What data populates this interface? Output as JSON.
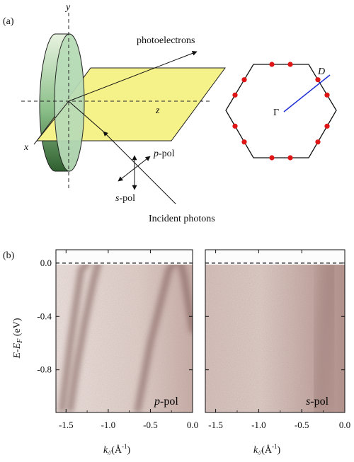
{
  "figure": {
    "panel_a_label": "(a)",
    "panel_b_label": "(b)"
  },
  "panel_a": {
    "axes": {
      "x": "x",
      "y": "y",
      "z": "z"
    },
    "labels": {
      "photoelectrons": "photoelectrons",
      "incident_photons": "Incident photons",
      "p_pol_prefix": "p",
      "p_pol_suffix": "-pol",
      "s_pol_prefix": "s",
      "s_pol_suffix": "-pol"
    },
    "colors": {
      "crystal_face": "#b8dcb8",
      "crystal_rim": "#3f7a3f",
      "scattering_plane": "#f6f28a",
      "brillouin_zone": "#111111",
      "cut_line": "#1f2fd6",
      "dirac_points": "#e01515"
    },
    "brillouin_zone": {
      "gamma_label": "Γ",
      "dirac_label": "D"
    }
  },
  "panel_b": {
    "ylabel_main": "E-E",
    "ylabel_sub": "F",
    "ylabel_unit": "(eV)",
    "xlabel_main": "k",
    "xlabel_sub": "//",
    "xlabel_unit": "(Å",
    "xlabel_exp": "-1",
    "xlabel_close": ")",
    "colors": {
      "intensity_low": "#efe7e3",
      "intensity_high": "#6e4a46"
    }
  },
  "chart_data": [
    {
      "type": "heatmap",
      "title": "",
      "annotation_prefix": "p",
      "annotation_suffix": "-pol",
      "xlim": [
        -1.62,
        0.0
      ],
      "ylim": [
        -1.12,
        0.1
      ],
      "x_ticks": [
        -1.5,
        -1.0,
        -0.5,
        0.0
      ],
      "x_tick_labels": [
        "-1.5",
        "-1.0",
        "-0.5",
        "0.0"
      ],
      "y_ticks": [
        0.0,
        -0.4,
        -0.8
      ],
      "y_tick_labels": [
        "0.0",
        "-0.4",
        "-0.8"
      ],
      "fermi_level": 0.0,
      "bands": [
        {
          "name": "",
          "points": [
            [
              -1.55,
              -1.1
            ],
            [
              -1.45,
              -0.6
            ],
            [
              -1.38,
              -0.3
            ],
            [
              -1.32,
              -0.05
            ],
            [
              -1.25,
              0.0
            ]
          ]
        },
        {
          "name": "",
          "points": [
            [
              -1.45,
              -1.1
            ],
            [
              -1.38,
              -0.8
            ],
            [
              -1.28,
              -0.45
            ],
            [
              -1.18,
              -0.15
            ],
            [
              -1.12,
              0.0
            ]
          ]
        },
        {
          "name": "",
          "points": [
            [
              -0.65,
              -1.1
            ],
            [
              -0.5,
              -0.6
            ],
            [
              -0.38,
              -0.3
            ],
            [
              -0.28,
              -0.05
            ],
            [
              -0.22,
              0.0
            ]
          ]
        },
        {
          "name": "",
          "points": [
            [
              0.0,
              -0.5
            ],
            [
              -0.05,
              -0.3
            ],
            [
              -0.1,
              -0.1
            ],
            [
              -0.14,
              0.0
            ]
          ]
        }
      ]
    },
    {
      "type": "heatmap",
      "title": "",
      "annotation_prefix": "s",
      "annotation_suffix": "-pol",
      "xlim": [
        -1.62,
        0.0
      ],
      "ylim": [
        -1.12,
        0.1
      ],
      "x_ticks": [
        -1.5,
        -1.0,
        -0.5,
        0.0
      ],
      "x_tick_labels": [
        "-1.5",
        "-1.0",
        "-0.5",
        "0.0"
      ],
      "y_ticks": [
        0.0,
        -0.4,
        -0.8
      ],
      "y_tick_labels": [
        "",
        "",
        ""
      ],
      "fermi_level": 0.0,
      "bands": [
        {
          "name": "",
          "points": [
            [
              -0.3,
              -1.1
            ],
            [
              -0.25,
              -0.6
            ],
            [
              -0.2,
              -0.2
            ],
            [
              -0.18,
              0.0
            ]
          ]
        }
      ]
    }
  ]
}
